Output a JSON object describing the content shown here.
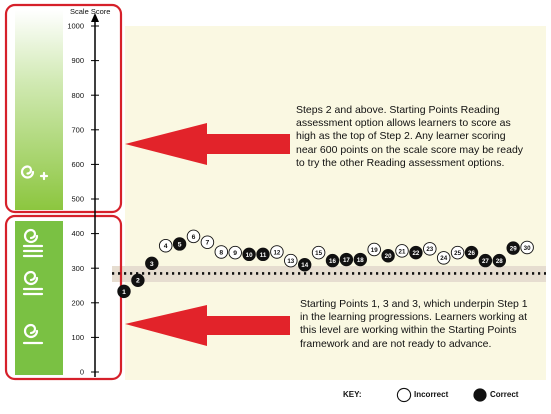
{
  "chart_data": {
    "type": "scatter",
    "ylabel": "Scale Score",
    "ylim": [
      0,
      1000
    ],
    "yticks": [
      0,
      100,
      200,
      300,
      400,
      500,
      600,
      700,
      800,
      900,
      1000
    ],
    "threshold_score": 275,
    "series": [
      {
        "name": "Incorrect",
        "style": "open",
        "points": [
          {
            "label": "4",
            "y": 365
          },
          {
            "label": "6",
            "y": 392
          },
          {
            "label": "7",
            "y": 375
          },
          {
            "label": "8",
            "y": 347
          },
          {
            "label": "9",
            "y": 345
          },
          {
            "label": "12",
            "y": 347
          },
          {
            "label": "13",
            "y": 322
          },
          {
            "label": "15",
            "y": 345
          },
          {
            "label": "19",
            "y": 354
          },
          {
            "label": "21",
            "y": 350
          },
          {
            "label": "23",
            "y": 356
          },
          {
            "label": "24",
            "y": 330
          },
          {
            "label": "25",
            "y": 345
          },
          {
            "label": "30",
            "y": 360
          }
        ]
      },
      {
        "name": "Correct",
        "style": "filled",
        "points": [
          {
            "label": "1",
            "y": 233
          },
          {
            "label": "2",
            "y": 265
          },
          {
            "label": "3",
            "y": 314
          },
          {
            "label": "5",
            "y": 370
          },
          {
            "label": "10",
            "y": 340
          },
          {
            "label": "11",
            "y": 340
          },
          {
            "label": "14",
            "y": 310
          },
          {
            "label": "16",
            "y": 322
          },
          {
            "label": "17",
            "y": 325
          },
          {
            "label": "18",
            "y": 325
          },
          {
            "label": "20",
            "y": 336
          },
          {
            "label": "22",
            "y": 345
          },
          {
            "label": "26",
            "y": 345
          },
          {
            "label": "27",
            "y": 322
          },
          {
            "label": "28",
            "y": 322
          },
          {
            "label": "29",
            "y": 358
          }
        ]
      }
    ],
    "legend": {
      "title": "KEY:",
      "placement": "bottom-right",
      "items": [
        {
          "label": "Incorrect",
          "style": "open"
        },
        {
          "label": "Correct",
          "style": "filled"
        }
      ]
    },
    "annotations": [
      "Steps 2 and above. Starting Points Reading assessment option allows learners to score as high as the top of Step 2. Any learner scoring near 600 points on the scale score may be ready to try the other Reading assessment options.",
      "Starting Points 1, 3 and 3, which underpin Step 1 in the learning progressions. Learners working at this level are working within the Starting Points framework and are not ready to advance."
    ],
    "bands": [
      {
        "name": "step-2",
        "from": 450,
        "to": 1000,
        "icons": [
          "spiral-plus"
        ]
      },
      {
        "name": "step-1",
        "from": 0,
        "to": 450,
        "icons": [
          "spiral-lines-3",
          "spiral-lines-2",
          "spiral-lines-1"
        ]
      }
    ],
    "colors": {
      "band_top": "#ffffff",
      "band_bottom": "#8cc63f",
      "step1_band": "#7ac143",
      "highlight_border": "#d6202a",
      "arrow": "#e2232a",
      "plot_bg": "#faf8e2",
      "threshold_band": "#e6ddd0",
      "point": "#111111"
    }
  }
}
